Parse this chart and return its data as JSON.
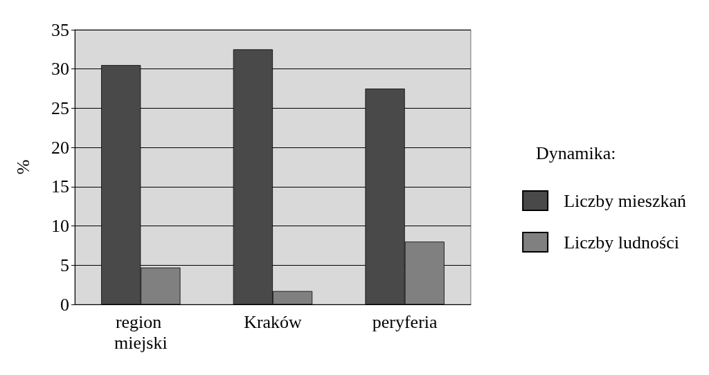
{
  "chart_data": {
    "type": "bar",
    "ylabel": "%",
    "legend_title": "Dynamika:",
    "categories": [
      "region miejski",
      "Kraków",
      "peryferia"
    ],
    "series": [
      {
        "name": "Liczby mieszkań",
        "color": "#494949",
        "values": [
          30.5,
          32.5,
          27.5
        ]
      },
      {
        "name": "Liczby ludności",
        "color": "#808080",
        "values": [
          4.7,
          1.7,
          8.0
        ]
      }
    ],
    "ylim": [
      0,
      35
    ],
    "yticks": [
      0,
      5,
      10,
      15,
      20,
      25,
      30,
      35
    ],
    "grid": "y",
    "legend": "right"
  }
}
